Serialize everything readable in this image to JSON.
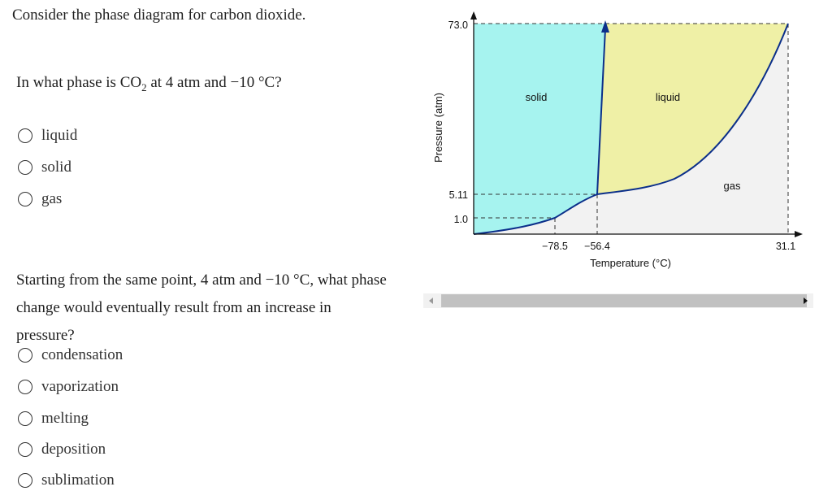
{
  "intro": "Consider the phase diagram for carbon dioxide.",
  "question1": {
    "prefix": "In what phase is CO",
    "subscript": "2",
    "suffix": " at 4 atm and −10 °C?",
    "options": [
      "liquid",
      "solid",
      "gas"
    ]
  },
  "question2": {
    "text": "Starting from the same point, 4 atm and −10 °C, what phase change would eventually result from an increase in pressure?",
    "options": [
      "condensation",
      "vaporization",
      "melting",
      "deposition",
      "sublimation"
    ]
  },
  "diagram": {
    "y_ticks": [
      "73.0",
      "5.11",
      "1.0"
    ],
    "x_ticks": [
      "−78.5",
      "−56.4",
      "31.1"
    ],
    "x_label": "Temperature (°C)",
    "y_label": "Pressure (atm)",
    "regions": {
      "solid": "solid",
      "liquid": "liquid",
      "gas": "gas"
    },
    "colors": {
      "solid": "#a6f3ef",
      "liquid": "#eff0a6",
      "gas": "#f2f2f2",
      "curve": "#0b2f8a"
    }
  },
  "scrollbar": {
    "left_icon": "scroll-left-arrow-icon",
    "right_icon": "scroll-right-arrow-icon"
  }
}
